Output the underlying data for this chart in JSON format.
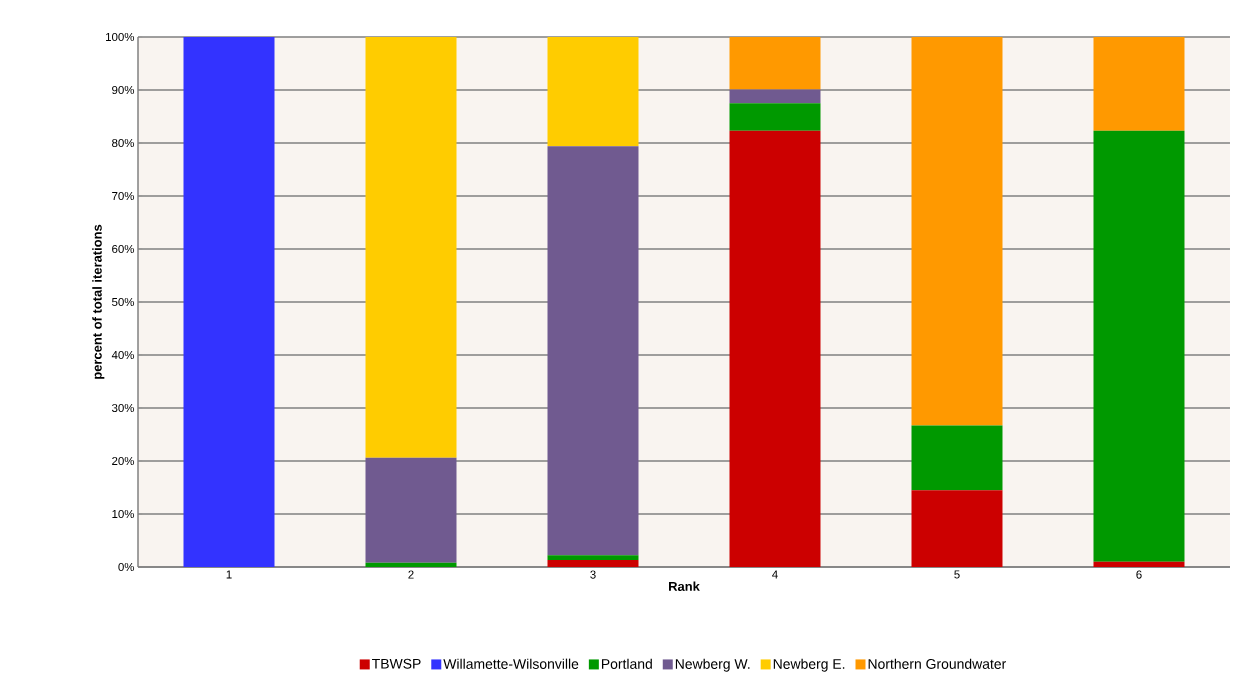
{
  "chart_data": {
    "type": "bar",
    "stacked": true,
    "xlabel": "Rank",
    "ylabel": "percent of total iterations",
    "categories": [
      "1",
      "2",
      "3",
      "4",
      "5",
      "6"
    ],
    "series": [
      {
        "name": "TBWSP",
        "color": "#cc0000",
        "values": [
          0,
          0,
          1.3,
          82.3,
          14.5,
          1.0
        ]
      },
      {
        "name": "Willamette-Wilsonville",
        "color": "#3333ff",
        "values": [
          100,
          0,
          0,
          0,
          0,
          0
        ]
      },
      {
        "name": "Portland",
        "color": "#009900",
        "values": [
          0,
          0.8,
          0.9,
          5.2,
          12.2,
          81.3
        ]
      },
      {
        "name": "Newberg W.",
        "color": "#705a90",
        "values": [
          0,
          19.8,
          77.2,
          2.6,
          0,
          0
        ]
      },
      {
        "name": "Newberg E.",
        "color": "#ffcc00",
        "values": [
          0,
          79.4,
          20.6,
          0,
          0,
          0
        ]
      },
      {
        "name": "Northern Groundwater",
        "color": "#ff9900",
        "values": [
          0,
          0,
          0,
          9.9,
          73.3,
          17.7
        ]
      }
    ],
    "ylim": [
      0,
      100
    ],
    "yticks": [
      {
        "value": 0,
        "label": "0%"
      },
      {
        "value": 10,
        "label": "10%"
      },
      {
        "value": 20,
        "label": "20%"
      },
      {
        "value": 30,
        "label": "30%"
      },
      {
        "value": 40,
        "label": "40%"
      },
      {
        "value": 50,
        "label": "50%"
      },
      {
        "value": 60,
        "label": "60%"
      },
      {
        "value": 70,
        "label": "70%"
      },
      {
        "value": 80,
        "label": "80%"
      },
      {
        "value": 90,
        "label": "90%"
      },
      {
        "value": 100,
        "label": "100%"
      }
    ],
    "grid": "y",
    "legend": "bottom"
  }
}
